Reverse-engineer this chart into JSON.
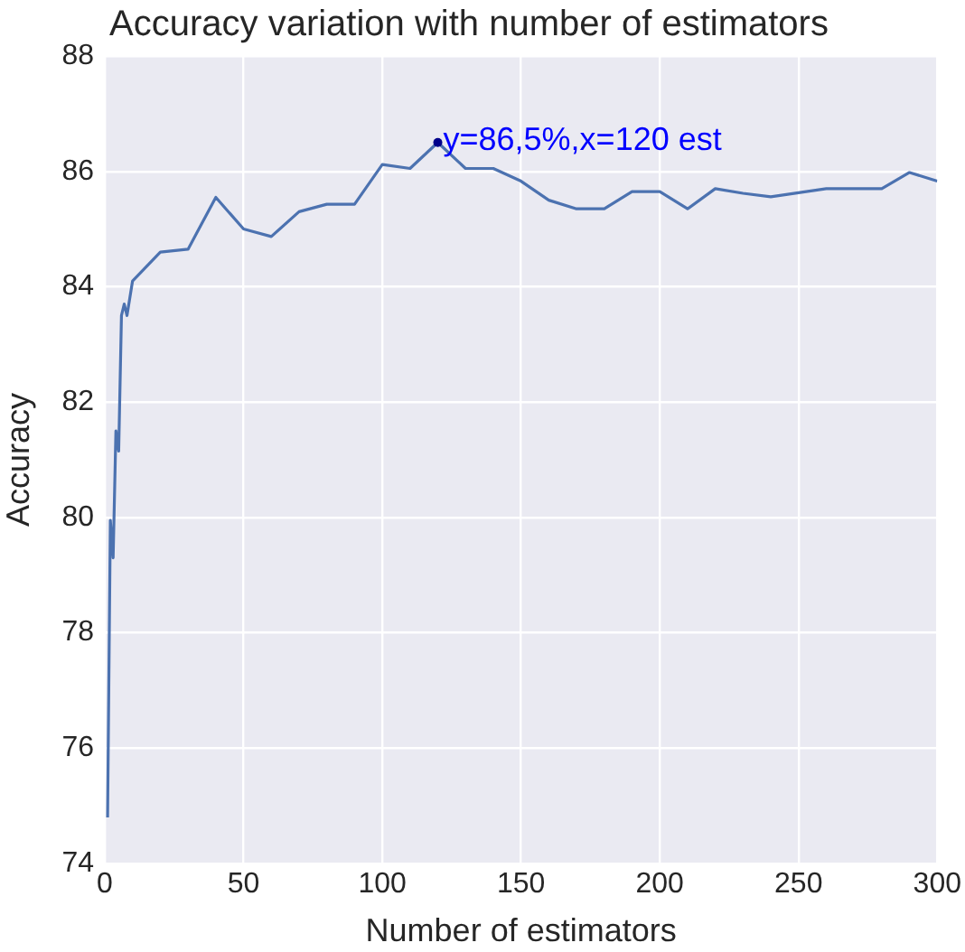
{
  "chart_data": {
    "type": "line",
    "title": "Accuracy variation with number of estimators",
    "xlabel": "Number of estimators",
    "ylabel": "Accuracy",
    "x": [
      1,
      2,
      3,
      4,
      5,
      6,
      7,
      8,
      10,
      20,
      30,
      40,
      50,
      60,
      70,
      80,
      90,
      100,
      110,
      120,
      130,
      140,
      150,
      160,
      170,
      180,
      190,
      200,
      210,
      220,
      230,
      240,
      250,
      260,
      270,
      280,
      290,
      300
    ],
    "series": [
      {
        "color": "#4c72b0",
        "values": [
          74.8,
          79.95,
          79.3,
          81.5,
          81.15,
          83.5,
          83.7,
          83.5,
          84.1,
          84.6,
          84.65,
          85.55,
          85.0,
          84.87,
          85.3,
          85.43,
          85.43,
          86.12,
          86.05,
          86.5,
          86.05,
          86.05,
          85.83,
          85.5,
          85.35,
          85.35,
          85.65,
          85.65,
          85.35,
          85.7,
          85.62,
          85.56,
          85.63,
          85.7,
          85.7,
          85.7,
          85.98,
          85.83
        ]
      }
    ],
    "annotations": [
      {
        "text": "y=86,5%,x=120 est",
        "x": 120,
        "y": 86.5
      }
    ],
    "xlim": [
      0,
      300
    ],
    "xticks": [
      0,
      50,
      100,
      150,
      200,
      250,
      300
    ],
    "ylim": [
      74,
      88
    ],
    "yticks": [
      74,
      76,
      78,
      80,
      82,
      84,
      86,
      88
    ],
    "grid": true,
    "legend": false,
    "marker": "none",
    "line_style": "solid"
  }
}
